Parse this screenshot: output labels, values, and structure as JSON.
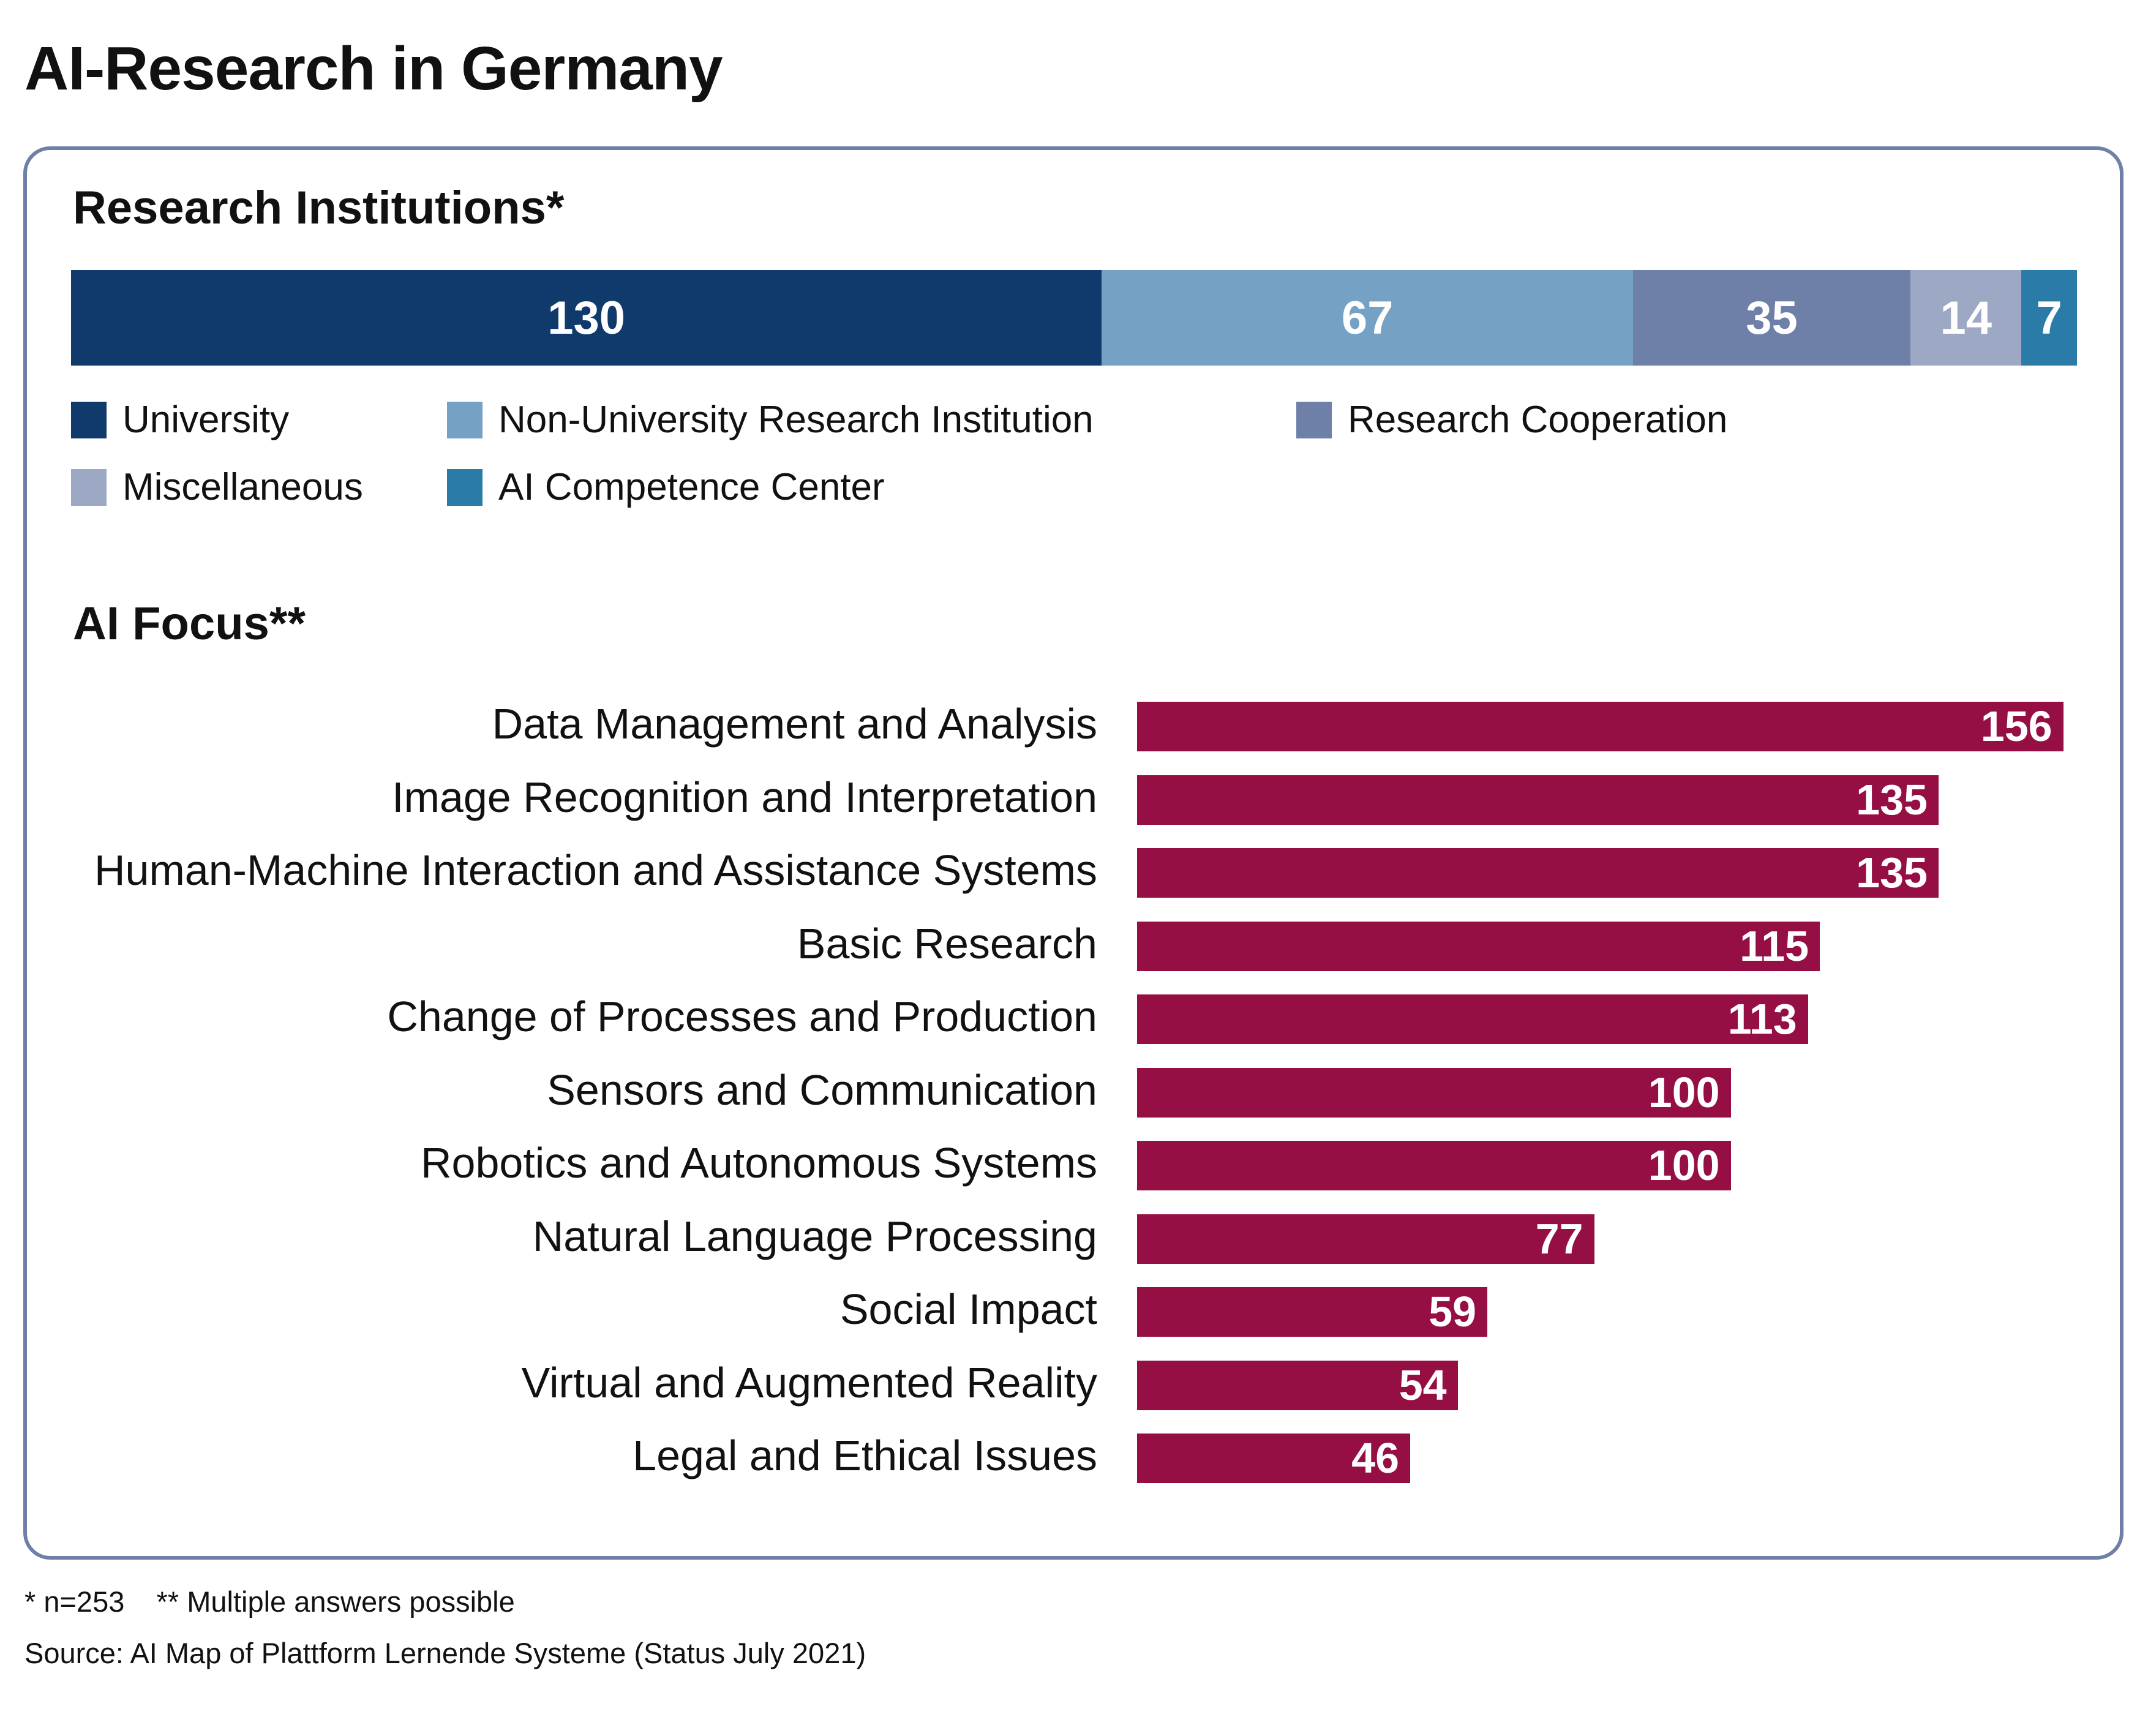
{
  "title": "AI-Research in Germany",
  "colors": {
    "bar": "#950f45",
    "frame": "#6e7fa8"
  },
  "chart_data": [
    {
      "type": "bar",
      "orientation": "horizontal-stacked",
      "title": "Research Institutions*",
      "series": [
        {
          "name": "University",
          "value": 130,
          "color": "#0f3a6b"
        },
        {
          "name": "Non-University Research Institution",
          "value": 67,
          "color": "#75a1c4"
        },
        {
          "name": "Research Cooperation",
          "value": 35,
          "color": "#6e7fa8"
        },
        {
          "name": "Miscellaneous",
          "value": 14,
          "color": "#9da8c5"
        },
        {
          "name": "AI Competence Center",
          "value": 7,
          "color": "#2a7ba7"
        }
      ],
      "legend": "bottom"
    },
    {
      "type": "bar",
      "orientation": "horizontal",
      "title": "AI Focus**",
      "categories": [
        "Data Management and Analysis",
        "Image Recognition and Interpretation",
        "Human-Machine Interaction and Assistance Systems",
        "Basic Research",
        "Change of Processes and Production",
        "Sensors and Communication",
        "Robotics and Autonomous Systems",
        "Natural Language Processing",
        "Social Impact",
        "Virtual and Augmented Reality",
        "Legal and Ethical Issues"
      ],
      "values": [
        156,
        135,
        135,
        115,
        113,
        100,
        100,
        77,
        59,
        54,
        46
      ],
      "grid": false
    }
  ],
  "footnotes": {
    "note": "* n=253    ** Multiple answers possible",
    "source": "Source: AI Map of Plattform Lernende Systeme (Status July 2021)"
  }
}
